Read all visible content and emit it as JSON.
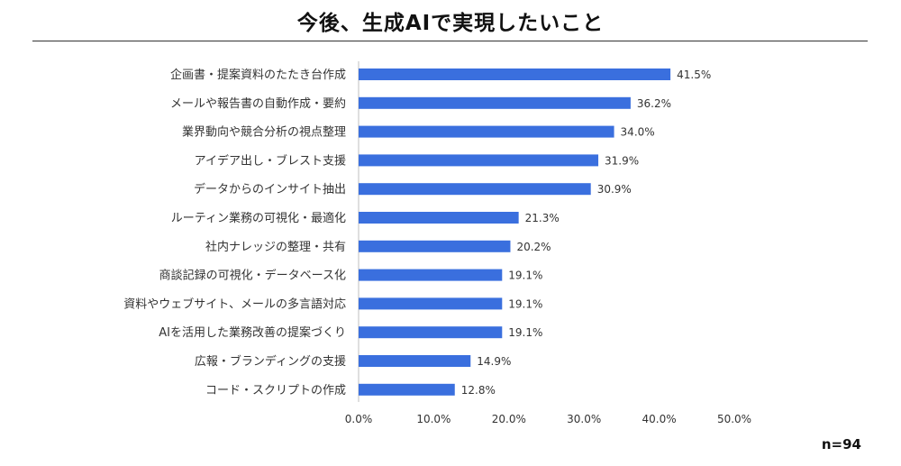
{
  "title": "今後、生成AIで実現したいこと",
  "sample_size": "n=94",
  "colors": {
    "bar": "#3a6fde",
    "axis": "#bfbfbf",
    "text": "#333333"
  },
  "chart_data": {
    "type": "bar",
    "orientation": "horizontal",
    "title": "今後、生成AIで実現したいこと",
    "categories": [
      "企画書・提案資料のたたき台作成",
      "メールや報告書の自動作成・要約",
      "業界動向や競合分析の視点整理",
      "アイデア出し・ブレスト支援",
      "データからのインサイト抽出",
      "ルーティン業務の可視化・最適化",
      "社内ナレッジの整理・共有",
      "商談記録の可視化・データベース化",
      "資料やウェブサイト、メールの多言語対応",
      "AIを活用した業務改善の提案づくり",
      "広報・ブランディングの支援",
      "コード・スクリプトの作成"
    ],
    "values": [
      41.5,
      36.2,
      34.0,
      31.9,
      30.9,
      21.3,
      20.2,
      19.1,
      19.1,
      19.1,
      14.9,
      12.8
    ],
    "value_labels": [
      "41.5%",
      "36.2%",
      "34.0%",
      "31.9%",
      "30.9%",
      "21.3%",
      "20.2%",
      "19.1%",
      "19.1%",
      "19.1%",
      "14.9%",
      "12.8%"
    ],
    "xlim": [
      0,
      50
    ],
    "xticks": [
      0,
      10,
      20,
      30,
      40,
      50
    ],
    "xtick_labels": [
      "0.0%",
      "10.0%",
      "20.0%",
      "30.0%",
      "40.0%",
      "50.0%"
    ],
    "grid": false,
    "legend": "none"
  }
}
